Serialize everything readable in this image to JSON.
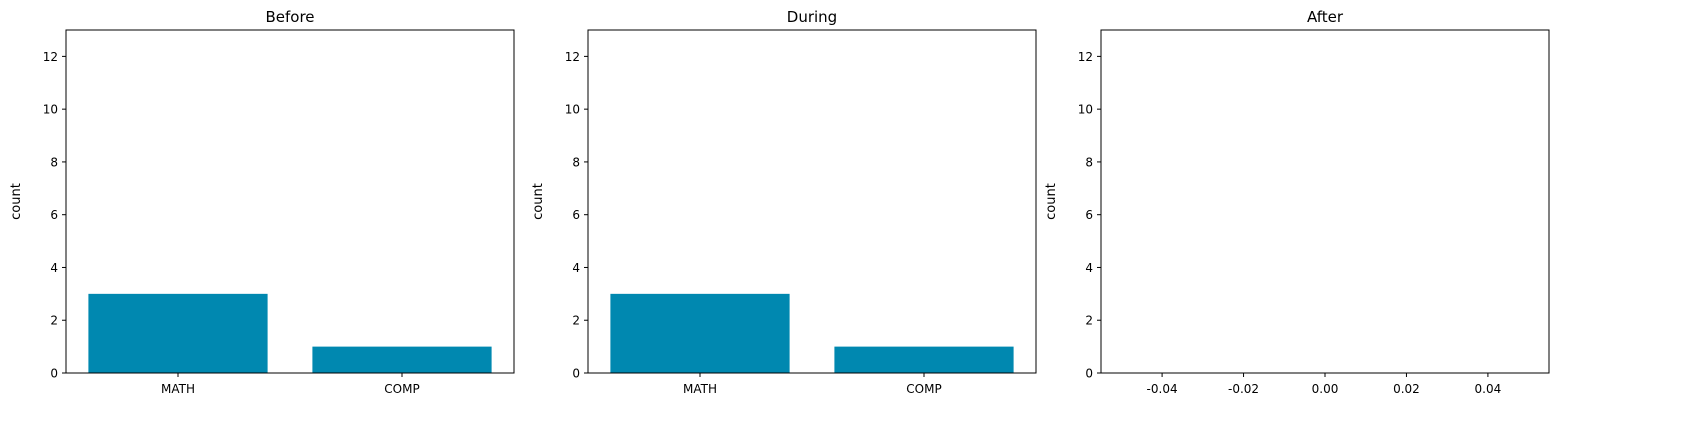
{
  "chart_data": [
    {
      "type": "bar",
      "title": "Before",
      "ylabel": "count",
      "xlabel": "",
      "categories": [
        "MATH",
        "COMP"
      ],
      "values": [
        3,
        1
      ],
      "ylim": [
        0,
        13
      ],
      "yticks": [
        0,
        2,
        4,
        6,
        8,
        10,
        12
      ],
      "color": "#0088b0",
      "grid": false
    },
    {
      "type": "bar",
      "title": "During",
      "ylabel": "count",
      "xlabel": "",
      "categories": [
        "MATH",
        "COMP"
      ],
      "values": [
        3,
        1
      ],
      "ylim": [
        0,
        13
      ],
      "yticks": [
        0,
        2,
        4,
        6,
        8,
        10,
        12
      ],
      "color": "#0088b0",
      "grid": false
    },
    {
      "type": "bar",
      "title": "After",
      "ylabel": "count",
      "xlabel": "",
      "categories": [],
      "values": [],
      "ylim": [
        0,
        13
      ],
      "yticks": [
        0,
        2,
        4,
        6,
        8,
        10,
        12
      ],
      "xlim": [
        -0.055,
        0.055
      ],
      "xticks": [
        "-0.04",
        "-0.02",
        "0.00",
        "0.02",
        "0.04"
      ],
      "xtick_values": [
        -0.04,
        -0.02,
        0,
        0.02,
        0.04
      ],
      "color": "#0088b0",
      "grid": false
    }
  ]
}
